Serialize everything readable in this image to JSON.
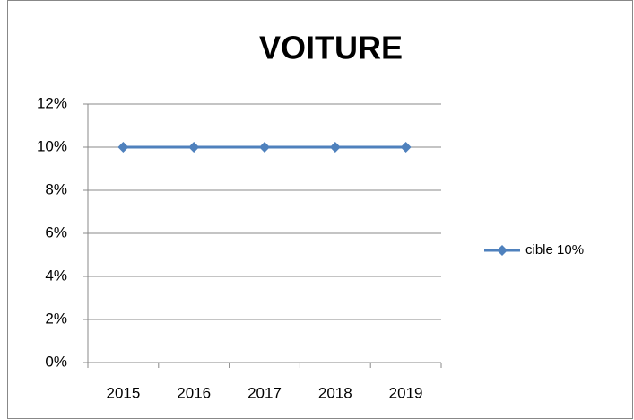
{
  "chart_data": {
    "type": "line",
    "title": "VOITURE",
    "categories": [
      "2015",
      "2016",
      "2017",
      "2018",
      "2019"
    ],
    "series": [
      {
        "name": "cible 10%",
        "color": "#4f81bd",
        "values": [
          10,
          10,
          10,
          10,
          10
        ]
      }
    ],
    "ylim": [
      0,
      12
    ],
    "yticks": [
      {
        "value": 0,
        "label": "0%"
      },
      {
        "value": 2,
        "label": "2%"
      },
      {
        "value": 4,
        "label": "4%"
      },
      {
        "value": 6,
        "label": "6%"
      },
      {
        "value": 8,
        "label": "8%"
      },
      {
        "value": 10,
        "label": "10%"
      },
      {
        "value": 12,
        "label": "12%"
      }
    ],
    "grid": true,
    "legend": "right"
  }
}
